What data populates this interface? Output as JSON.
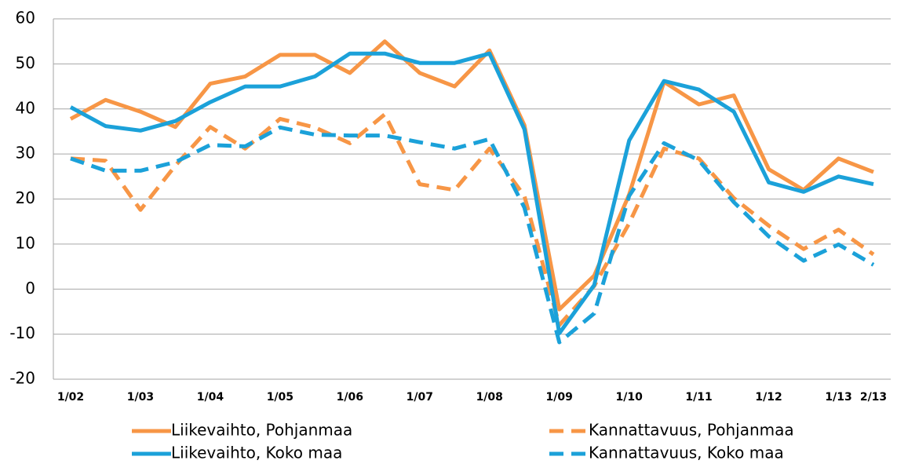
{
  "chart_data": {
    "type": "line",
    "categories": [
      "1/02",
      null,
      "1/03",
      null,
      "1/04",
      null,
      "1/05",
      null,
      "1/06",
      null,
      "1/07",
      null,
      "1/08",
      null,
      "1/09",
      null,
      "1/10",
      null,
      "1/11",
      null,
      "1/12",
      null,
      "1/13",
      "2/13"
    ],
    "series": [
      {
        "name": "Liikevaihto, Pohjanmaa",
        "color": "#f79646",
        "dashed": false,
        "values": [
          37.8,
          42,
          39.4,
          36,
          45.6,
          47.2,
          52,
          52,
          48,
          55,
          48,
          45,
          53,
          36.4,
          -4.5,
          3,
          21,
          46,
          41,
          43,
          26.6,
          22,
          29,
          26
        ]
      },
      {
        "name": "Kannattavuus, Pohjanmaa",
        "color": "#f79646",
        "dashed": true,
        "values": [
          29,
          28.5,
          17.6,
          27.4,
          36,
          31.2,
          37.8,
          35.9,
          32.4,
          38.8,
          23.3,
          22,
          31.2,
          20.7,
          -8,
          0.7,
          14.6,
          31.2,
          29,
          20.2,
          14.1,
          8.9,
          13.2,
          7.7
        ]
      },
      {
        "name": "Liikevaihto, Koko maa",
        "color": "#1ba1d9",
        "dashed": false,
        "values": [
          40.4,
          36.2,
          35.2,
          37.3,
          41.5,
          45,
          45,
          47.2,
          52.3,
          52.3,
          50.2,
          50.2,
          52.3,
          35.5,
          -9.8,
          0.9,
          33,
          46.2,
          44.3,
          39.4,
          23.7,
          21.6,
          25,
          23.3
        ]
      },
      {
        "name": "Kannattavuus, Koko maa",
        "color": "#1ba1d9",
        "dashed": true,
        "values": [
          29,
          26.3,
          26.3,
          28.2,
          32,
          31.7,
          35.9,
          34.3,
          34.1,
          34.1,
          32.6,
          31.2,
          33.3,
          18.1,
          -11.8,
          -5.4,
          20.7,
          32.4,
          28.6,
          19.3,
          11.7,
          6.3,
          9.9,
          5.4
        ]
      }
    ],
    "ylim": [
      -20,
      60
    ],
    "yticks": [
      -20,
      -10,
      0,
      10,
      20,
      30,
      40,
      50,
      60
    ],
    "grid": true
  }
}
